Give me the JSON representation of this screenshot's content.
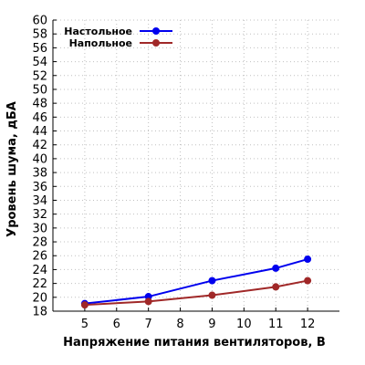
{
  "chart_data": {
    "type": "line",
    "title": "",
    "xlabel": "Напряжение питания вентиляторов, В",
    "ylabel": "Уровень шума, дБА",
    "xlim": [
      4,
      13
    ],
    "ylim": [
      18,
      60
    ],
    "x_ticks": [
      5,
      6,
      7,
      8,
      9,
      10,
      11,
      12
    ],
    "y_ticks": [
      18,
      20,
      22,
      24,
      26,
      28,
      30,
      32,
      34,
      36,
      38,
      40,
      42,
      44,
      46,
      48,
      50,
      52,
      54,
      56,
      58,
      60
    ],
    "grid": true,
    "legend": "top-left",
    "series": [
      {
        "name": "Настольное",
        "color": "#0000ee",
        "x": [
          5,
          7,
          9,
          11,
          12
        ],
        "y": [
          19.1,
          20.1,
          22.4,
          24.2,
          25.5
        ]
      },
      {
        "name": "Напольное",
        "color": "#a02828",
        "x": [
          5,
          7,
          9,
          11,
          12
        ],
        "y": [
          18.9,
          19.4,
          20.3,
          21.5,
          22.4
        ]
      }
    ]
  }
}
